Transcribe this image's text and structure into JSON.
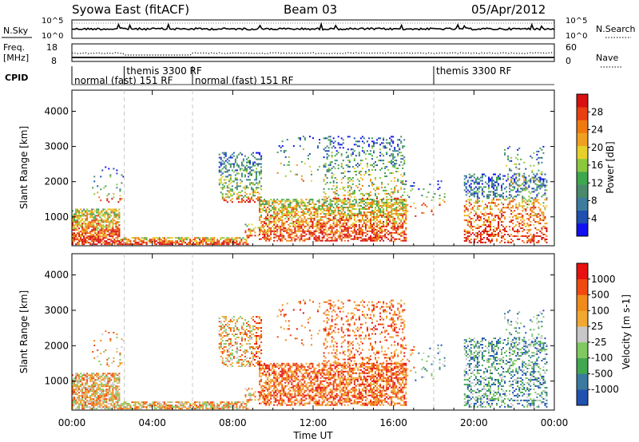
{
  "header": {
    "station": "Syowa East (fitACF)",
    "beam": "Beam 03",
    "date": "05/Apr/2012"
  },
  "panels": {
    "nsky_label": "N.Sky",
    "nsky_ticks": [
      "10^5",
      "10^0"
    ],
    "nsearch_label": "N.Search",
    "nsearch_ticks": [
      "10^5",
      "10^0"
    ],
    "freq_label_top": "Freq.",
    "freq_label_unit": "[MHz]",
    "freq_ticks": [
      "18",
      "8"
    ],
    "nave_label": "Nave",
    "nave_ticks": [
      "60",
      "0"
    ],
    "cpid_label": "CPID"
  },
  "cpid_segments": [
    {
      "label": "normal (fast) 151 RF",
      "start": 0.0,
      "end": 2.6
    },
    {
      "label": "themis 3300 RF",
      "start": 2.6,
      "end": 6.0
    },
    {
      "label": "normal (fast) 151 RF",
      "start": 6.0,
      "end": 18.0
    },
    {
      "label": "themis 3300 RF",
      "start": 18.0,
      "end": 24.0
    }
  ],
  "chart_data": [
    {
      "type": "heatmap",
      "parameter": "Power",
      "ylabel": "Slant Range [km]",
      "y_ticks": [
        1000,
        2000,
        3000,
        4000
      ],
      "ylim": [
        180,
        4600
      ],
      "xlim": [
        0,
        24
      ],
      "colorbar_label": "Power [dB]",
      "colorbar_ticks": [
        "4",
        "8",
        "12",
        "16",
        "20",
        "24",
        "28"
      ],
      "colorbar_range": [
        0,
        30
      ]
    },
    {
      "type": "heatmap",
      "parameter": "Velocity",
      "ylabel": "Slant Range [km]",
      "y_ticks": [
        1000,
        2000,
        3000,
        4000
      ],
      "ylim": [
        180,
        4600
      ],
      "xlim": [
        0,
        24
      ],
      "xlabel": "Time UT",
      "x_ticks": [
        "00:00",
        "04:00",
        "08:00",
        "12:00",
        "16:00",
        "20:00",
        "00:00"
      ],
      "colorbar_label": "Velocity [m s-1]",
      "colorbar_ticks": [
        "1000",
        "500",
        "100",
        "25",
        "-25",
        "-100",
        "-500",
        "-1000"
      ]
    }
  ],
  "colors": {
    "power_scale": [
      "#1010f0",
      "#2050b0",
      "#3d7c9c",
      "#4a8a6a",
      "#3ea84e",
      "#8cc83c",
      "#e8d02a",
      "#f0a020",
      "#f07a10",
      "#e84010",
      "#d81010"
    ],
    "velocity_scale": [
      "#e81010",
      "#f04a10",
      "#f08a18",
      "#f0a830",
      "#c8c8c8",
      "#80c860",
      "#40a850",
      "#3a7aa0",
      "#2050b0"
    ]
  }
}
